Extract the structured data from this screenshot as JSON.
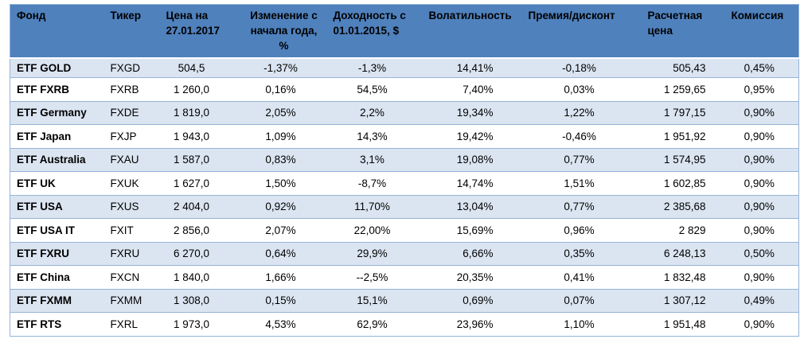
{
  "headers": [
    "Фонд",
    "Тикер",
    "Цена на 27.01.2017",
    "Изменение с начала года, %",
    "Доходность с 01.01.2015, $",
    "Волатильность",
    "Премия/дисконт",
    "Расчетная цена",
    "Комиссия"
  ],
  "rows": [
    [
      "ETF GOLD",
      "FXGD",
      "504,5",
      "-1,37%",
      "-1,3%",
      "14,41%",
      "-0,18%",
      "505,43",
      "0,45%"
    ],
    [
      "ETF FXRB",
      "FXRB",
      "1 260,0",
      "0,16%",
      "54,5%",
      "7,40%",
      "0,03%",
      "1 259,65",
      "0,95%"
    ],
    [
      "ETF Germany",
      "FXDE",
      "1 819,0",
      "2,05%",
      "2,2%",
      "19,34%",
      "1,22%",
      "1 797,15",
      "0,90%"
    ],
    [
      "ETF Japan",
      "FXJP",
      "1 943,0",
      "1,09%",
      "14,3%",
      "19,42%",
      "-0,46%",
      "1 951,92",
      "0,90%"
    ],
    [
      "ETF Australia",
      "FXAU",
      "1 587,0",
      "0,83%",
      "3,1%",
      "19,08%",
      "0,77%",
      "1 574,95",
      "0,90%"
    ],
    [
      "ETF UK",
      "FXUK",
      "1 627,0",
      "1,50%",
      "-8,7%",
      "14,74%",
      "1,51%",
      "1 602,85",
      "0,90%"
    ],
    [
      "ETF USA",
      "FXUS",
      "2 404,0",
      "0,92%",
      "11,70%",
      "13,04%",
      "0,77%",
      "2 385,68",
      "0,90%"
    ],
    [
      "ETF USA IT",
      "FXIT",
      "2 856,0",
      "2,07%",
      "22,00%",
      "15,69%",
      "0,96%",
      "2 829",
      "0,90%"
    ],
    [
      "ETF FXRU",
      "FXRU",
      "6 270,0",
      "0,64%",
      "29,9%",
      "6,66%",
      "0,35%",
      "6 248,13",
      "0,50%"
    ],
    [
      "ETF China",
      "FXCN",
      "1 840,0",
      "1,66%",
      "--2,5%",
      "20,35%",
      "0,41%",
      "1 832,48",
      "0,90%"
    ],
    [
      "ETF FXMM",
      "FXMM",
      "1 308,0",
      "0,15%",
      "15,1%",
      "0,69%",
      "0,07%",
      "1 307,12",
      "0,49%"
    ],
    [
      "ETF RTS",
      "FXRL",
      "1 973,0",
      "4,53%",
      "62,9%",
      "23,96%",
      "1,10%",
      "1 951,48",
      "0,90%"
    ]
  ]
}
